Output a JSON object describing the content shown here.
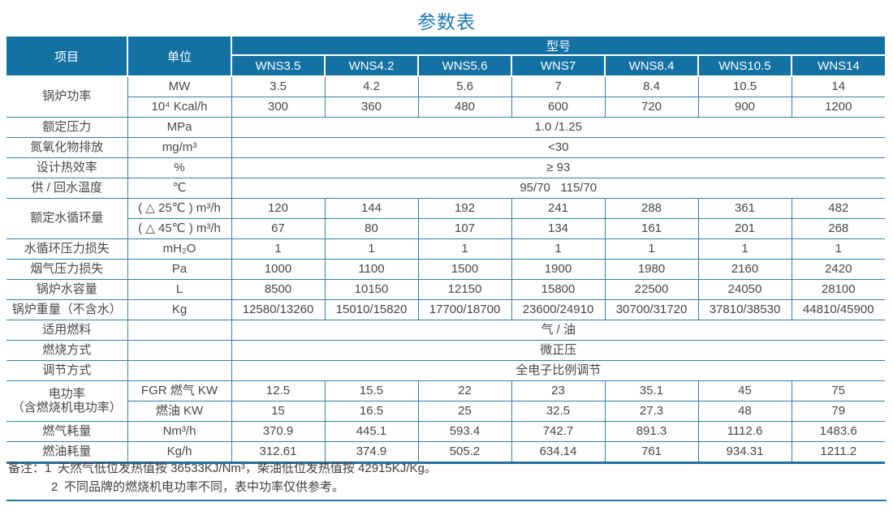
{
  "title": "参数表",
  "colors": {
    "header_bg": "#1371a3",
    "border": "#2e81af",
    "accent_text": "#1d7ab1",
    "body_text": "#474747"
  },
  "table": {
    "header": {
      "item": "项目",
      "unit": "单位",
      "model_group": "型号",
      "models": [
        "WNS3.5",
        "WNS4.2",
        "WNS5.6",
        "WNS7",
        "WNS8.4",
        "WNS10.5",
        "WNS14"
      ]
    },
    "rows": [
      {
        "item": "锅炉功率",
        "rowspan": 2,
        "unit": "MW",
        "values": [
          "3.5",
          "4.2",
          "5.6",
          "7",
          "8.4",
          "10.5",
          "14"
        ]
      },
      {
        "unit": "10⁴ Kcal/h",
        "values": [
          "300",
          "360",
          "480",
          "600",
          "720",
          "900",
          "1200"
        ]
      },
      {
        "item": "额定压力",
        "unit": "MPa",
        "span": "1.0 /1.25"
      },
      {
        "item": "氮氧化物排放",
        "unit": "mg/m³",
        "span": "<30"
      },
      {
        "item": "设计热效率",
        "unit": "%",
        "span": "≥ 93"
      },
      {
        "item": "供 / 回水温度",
        "unit": "℃",
        "span": "95/70   115/70"
      },
      {
        "item": "额定水循环量",
        "rowspan": 2,
        "unit": "( △ 25℃ ) m³/h",
        "values": [
          "120",
          "144",
          "192",
          "241",
          "288",
          "361",
          "482"
        ]
      },
      {
        "unit": "( △ 45℃ ) m³/h",
        "values": [
          "67",
          "80",
          "107",
          "134",
          "161",
          "201",
          "268"
        ]
      },
      {
        "item": "水循环压力损失",
        "unit": "mH₂O",
        "values": [
          "1",
          "1",
          "1",
          "1",
          "1",
          "1",
          "1"
        ]
      },
      {
        "item": "烟气压力损失",
        "unit": "Pa",
        "values": [
          "1000",
          "1100",
          "1500",
          "1900",
          "1980",
          "2160",
          "2420"
        ]
      },
      {
        "item": "锅炉水容量",
        "unit": "L",
        "values": [
          "8500",
          "10150",
          "12150",
          "15800",
          "22500",
          "24050",
          "28100"
        ]
      },
      {
        "item": "锅炉重量（不含水）",
        "unit": "Kg",
        "values": [
          "12580/13260",
          "15010/15820",
          "17700/18700",
          "23600/24910",
          "30700/31720",
          "37810/38530",
          "44810/45900"
        ]
      },
      {
        "item": "适用燃料",
        "unit": "",
        "span": "气 / 油"
      },
      {
        "item": "燃烧方式",
        "unit": "",
        "span": "微正压"
      },
      {
        "item": "调节方式",
        "unit": "",
        "span": "全电子比例调节"
      },
      {
        "item": "电功率\n（含燃烧机电功率）",
        "rowspan": 2,
        "unit": "FGR 燃气 KW",
        "values": [
          "12.5",
          "15.5",
          "22",
          "23",
          "35.1",
          "45",
          "75"
        ]
      },
      {
        "unit": "燃油 KW",
        "values": [
          "15",
          "16.5",
          "25",
          "32.5",
          "27.3",
          "48",
          "79"
        ]
      },
      {
        "item": "燃气耗量",
        "unit": "Nm³/h",
        "values": [
          "370.9",
          "445.1",
          "593.4",
          "742.7",
          "891.3",
          "1112.6",
          "1483.6"
        ]
      },
      {
        "item": "燃油耗量",
        "unit": "Kg/h",
        "values": [
          "312.61",
          "374.9",
          "505.2",
          "634.14",
          "761",
          "934.31",
          "1211.2"
        ]
      }
    ]
  },
  "notes": {
    "label": "备注：",
    "items": [
      {
        "num": "1",
        "text": "天然气低位发热值按 36533KJ/Nm³，柴油低位发热值按 42915KJ/Kg。"
      },
      {
        "num": "2",
        "text": "不同品牌的燃烧机电功率不同，表中功率仅供参考。"
      }
    ]
  }
}
